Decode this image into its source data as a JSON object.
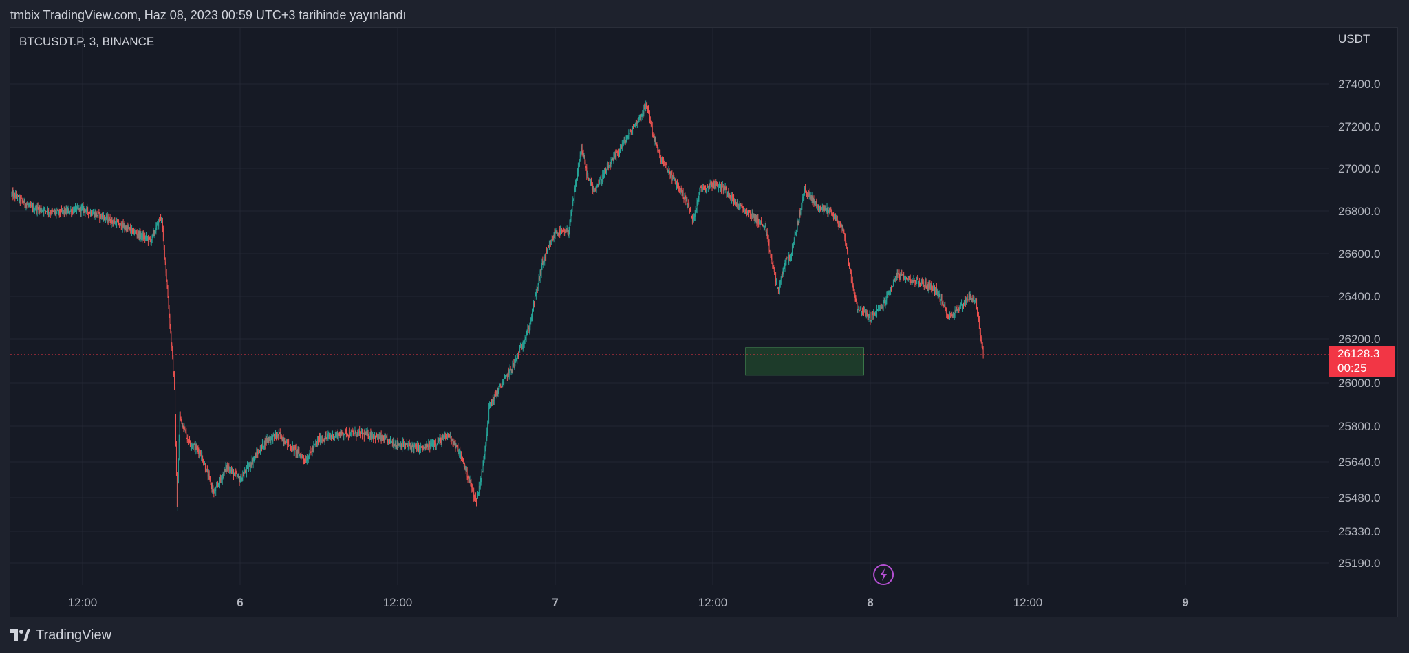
{
  "header": {
    "published": "tmbix TradingView.com, Haz 08, 2023 00:59 UTC+3 tarihinde yayınlandı"
  },
  "footer": {
    "brand": "TradingView",
    "logo_icon": "tradingview-logo-icon"
  },
  "colors": {
    "background": "#161a25",
    "up": "#26a69a",
    "down": "#ef5350",
    "price_line": "#f23645",
    "zone_fill": "#1d3b2a",
    "zone_border": "#3d7a4a",
    "event_icon": "#b34fd1"
  },
  "chart_data": {
    "type": "candlestick",
    "symbol_label": "BTCUSDT.P, 3, BINANCE",
    "currency": "USDT",
    "y_ticks": [
      27400.0,
      27200.0,
      27000.0,
      26800.0,
      26600.0,
      26400.0,
      26200.0,
      26000.0,
      25800.0,
      25640.0,
      25480.0,
      25330.0,
      25190.0
    ],
    "y_tick_labels": [
      "27400.0",
      "27200.0",
      "27000.0",
      "26800.0",
      "26600.0",
      "26400.0",
      "26200.0",
      "26000.0",
      "25800.0",
      "25640.0",
      "25480.0",
      "25330.0",
      "25190.0"
    ],
    "x_tick_labels": [
      "12:00",
      "6",
      "12:00",
      "7",
      "12:00",
      "8",
      "12:00",
      "9"
    ],
    "x_tick_hours": [
      12,
      24,
      36,
      48,
      60,
      72,
      84,
      96
    ],
    "x_range_hours": [
      6.6,
      110
    ],
    "last_price": "26128.3",
    "last_price_value": 26128.3,
    "countdown": "00:25",
    "price_path": [
      {
        "t": 6.6,
        "p": 26880
      },
      {
        "t": 8,
        "p": 26820
      },
      {
        "t": 10,
        "p": 26790
      },
      {
        "t": 12,
        "p": 26810
      },
      {
        "t": 14,
        "p": 26760
      },
      {
        "t": 16,
        "p": 26700
      },
      {
        "t": 17.2,
        "p": 26660
      },
      {
        "t": 18,
        "p": 26780
      },
      {
        "t": 18.3,
        "p": 26560
      },
      {
        "t": 19,
        "p": 25980
      },
      {
        "t": 19.2,
        "p": 25440
      },
      {
        "t": 19.4,
        "p": 25850
      },
      {
        "t": 20,
        "p": 25740
      },
      {
        "t": 21,
        "p": 25680
      },
      {
        "t": 22,
        "p": 25500
      },
      {
        "t": 23,
        "p": 25620
      },
      {
        "t": 24,
        "p": 25560
      },
      {
        "t": 25,
        "p": 25650
      },
      {
        "t": 26,
        "p": 25740
      },
      {
        "t": 27,
        "p": 25760
      },
      {
        "t": 28,
        "p": 25700
      },
      {
        "t": 29,
        "p": 25650
      },
      {
        "t": 30,
        "p": 25740
      },
      {
        "t": 32,
        "p": 25770
      },
      {
        "t": 34,
        "p": 25760
      },
      {
        "t": 36,
        "p": 25720
      },
      {
        "t": 38,
        "p": 25700
      },
      {
        "t": 40,
        "p": 25760
      },
      {
        "t": 41,
        "p": 25640
      },
      {
        "t": 42,
        "p": 25460
      },
      {
        "t": 42.5,
        "p": 25620
      },
      {
        "t": 43,
        "p": 25900
      },
      {
        "t": 44,
        "p": 26000
      },
      {
        "t": 45,
        "p": 26100
      },
      {
        "t": 46,
        "p": 26250
      },
      {
        "t": 47,
        "p": 26550
      },
      {
        "t": 48,
        "p": 26700
      },
      {
        "t": 49,
        "p": 26700
      },
      {
        "t": 50,
        "p": 27100
      },
      {
        "t": 50.5,
        "p": 26950
      },
      {
        "t": 51,
        "p": 26900
      },
      {
        "t": 52,
        "p": 27000
      },
      {
        "t": 53,
        "p": 27100
      },
      {
        "t": 54,
        "p": 27200
      },
      {
        "t": 55,
        "p": 27300
      },
      {
        "t": 55.5,
        "p": 27150
      },
      {
        "t": 56,
        "p": 27050
      },
      {
        "t": 57,
        "p": 26950
      },
      {
        "t": 58,
        "p": 26850
      },
      {
        "t": 58.5,
        "p": 26750
      },
      {
        "t": 59,
        "p": 26900
      },
      {
        "t": 60,
        "p": 26930
      },
      {
        "t": 61,
        "p": 26900
      },
      {
        "t": 62,
        "p": 26820
      },
      {
        "t": 63,
        "p": 26780
      },
      {
        "t": 64,
        "p": 26720
      },
      {
        "t": 64.5,
        "p": 26560
      },
      {
        "t": 65,
        "p": 26420
      },
      {
        "t": 65.5,
        "p": 26560
      },
      {
        "t": 66,
        "p": 26600
      },
      {
        "t": 67,
        "p": 26900
      },
      {
        "t": 68,
        "p": 26820
      },
      {
        "t": 69,
        "p": 26800
      },
      {
        "t": 70,
        "p": 26700
      },
      {
        "t": 70.5,
        "p": 26500
      },
      {
        "t": 71,
        "p": 26350
      },
      {
        "t": 72,
        "p": 26300
      },
      {
        "t": 73,
        "p": 26360
      },
      {
        "t": 74,
        "p": 26500
      },
      {
        "t": 75,
        "p": 26480
      },
      {
        "t": 76,
        "p": 26460
      },
      {
        "t": 77,
        "p": 26430
      },
      {
        "t": 78,
        "p": 26300
      },
      {
        "t": 79,
        "p": 26360
      },
      {
        "t": 79.5,
        "p": 26400
      },
      {
        "t": 80,
        "p": 26380
      },
      {
        "t": 80.3,
        "p": 26260
      },
      {
        "t": 80.6,
        "p": 26128.3
      }
    ],
    "zone": {
      "t_start": 62.5,
      "t_end": 71.5,
      "price_high": 26160,
      "price_low": 26035
    },
    "event_marker_hour": 73
  }
}
